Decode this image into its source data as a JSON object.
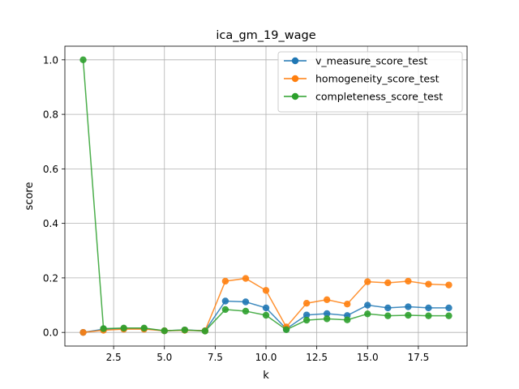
{
  "chart_data": {
    "type": "line",
    "title": "ica_gm_19_wage",
    "xlabel": "k",
    "ylabel": "score",
    "xlim": [
      0.1,
      19.9
    ],
    "ylim": [
      -0.05,
      1.05
    ],
    "xticks": [
      2.5,
      5.0,
      7.5,
      10.0,
      12.5,
      15.0,
      17.5
    ],
    "xtick_labels": [
      "2.5",
      "5.0",
      "7.5",
      "10.0",
      "12.5",
      "15.0",
      "17.5"
    ],
    "yticks": [
      0.0,
      0.2,
      0.4,
      0.6,
      0.8,
      1.0
    ],
    "ytick_labels": [
      "0.0",
      "0.2",
      "0.4",
      "0.6",
      "0.8",
      "1.0"
    ],
    "grid": true,
    "legend_position": "top-right",
    "x": [
      1,
      2,
      3,
      4,
      5,
      6,
      7,
      8,
      9,
      10,
      11,
      12,
      13,
      14,
      15,
      16,
      17,
      18,
      19
    ],
    "series": [
      {
        "name": "v_measure_score_test",
        "color": "#1f77b4",
        "values": [
          0.0,
          0.012,
          0.014,
          0.014,
          0.006,
          0.009,
          0.006,
          0.115,
          0.112,
          0.09,
          0.013,
          0.064,
          0.069,
          0.062,
          0.1,
          0.09,
          0.094,
          0.09,
          0.09
        ]
      },
      {
        "name": "homogeneity_score_test",
        "color": "#ff7f0e",
        "values": [
          0.0,
          0.008,
          0.012,
          0.012,
          0.006,
          0.008,
          0.006,
          0.188,
          0.198,
          0.154,
          0.02,
          0.107,
          0.12,
          0.104,
          0.186,
          0.182,
          0.188,
          0.177,
          0.174
        ]
      },
      {
        "name": "completeness_score_test",
        "color": "#2ca02c",
        "values": [
          1.0,
          0.014,
          0.016,
          0.016,
          0.006,
          0.009,
          0.005,
          0.084,
          0.078,
          0.063,
          0.01,
          0.045,
          0.05,
          0.046,
          0.068,
          0.061,
          0.063,
          0.061,
          0.061
        ]
      }
    ]
  }
}
